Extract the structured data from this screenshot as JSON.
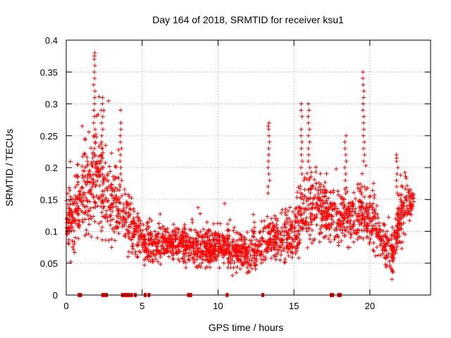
{
  "chart_data": {
    "type": "scatter",
    "title": "Day 164 of 2018, SRMTID for receiver ksu1",
    "xlabel": "GPS time / hours",
    "ylabel": "SRMTID / TECUs",
    "xlim": [
      0,
      24
    ],
    "ylim": [
      0,
      0.4
    ],
    "grid": true,
    "series_color": "#ff0000",
    "x_ticks": [
      0,
      5,
      10,
      15,
      20
    ],
    "x_tick_labels": [
      "0",
      "5",
      "10",
      "15",
      "20"
    ],
    "y_ticks": [
      0,
      0.05,
      0.1,
      0.15,
      0.2,
      0.25,
      0.3,
      0.35,
      0.4
    ],
    "y_tick_labels": [
      "0",
      "0.05",
      "0.1",
      "0.15",
      "0.2",
      "0.25",
      "0.3",
      "0.35",
      "0.4"
    ],
    "profile": {
      "x": [
        0,
        0.5,
        1.0,
        1.5,
        2.0,
        2.5,
        3.0,
        3.5,
        4.0,
        4.5,
        5.0,
        6,
        7,
        8,
        9,
        10,
        11,
        12,
        12.5,
        13,
        13.5,
        14,
        15,
        15.5,
        16,
        16.5,
        17,
        18,
        19,
        19.5,
        20,
        20.5,
        21,
        21.5,
        22,
        22.5,
        22.9
      ],
      "center": [
        0.11,
        0.13,
        0.15,
        0.17,
        0.18,
        0.16,
        0.14,
        0.13,
        0.12,
        0.1,
        0.085,
        0.08,
        0.08,
        0.075,
        0.075,
        0.075,
        0.07,
        0.065,
        0.07,
        0.08,
        0.09,
        0.085,
        0.1,
        0.12,
        0.14,
        0.14,
        0.13,
        0.12,
        0.12,
        0.13,
        0.12,
        0.1,
        0.075,
        0.07,
        0.12,
        0.14,
        0.15
      ],
      "spread": [
        0.03,
        0.05,
        0.06,
        0.07,
        0.08,
        0.07,
        0.06,
        0.05,
        0.04,
        0.03,
        0.03,
        0.025,
        0.025,
        0.025,
        0.025,
        0.025,
        0.025,
        0.025,
        0.025,
        0.03,
        0.035,
        0.03,
        0.035,
        0.05,
        0.05,
        0.045,
        0.04,
        0.035,
        0.035,
        0.04,
        0.04,
        0.035,
        0.03,
        0.03,
        0.04,
        0.035,
        0.03
      ]
    },
    "spikes": [
      {
        "x": 1.85,
        "values": [
          0.38,
          0.375,
          0.37,
          0.36,
          0.35,
          0.34,
          0.33,
          0.32,
          0.31,
          0.3,
          0.29,
          0.28,
          0.27,
          0.26,
          0.25,
          0.24,
          0.23,
          0.22
        ]
      },
      {
        "x": 2.35,
        "values": [
          0.31,
          0.3,
          0.29,
          0.28,
          0.27,
          0.26,
          0.25,
          0.24,
          0.23,
          0.22,
          0.21,
          0.2
        ]
      },
      {
        "x": 3.6,
        "values": [
          0.29,
          0.27,
          0.26,
          0.25,
          0.24,
          0.23,
          0.22,
          0.21,
          0.2,
          0.19,
          0.18,
          0.17
        ]
      },
      {
        "x": 13.35,
        "values": [
          0.27,
          0.265,
          0.26,
          0.25,
          0.24,
          0.23,
          0.22,
          0.21,
          0.2,
          0.19,
          0.18,
          0.17,
          0.16
        ]
      },
      {
        "x": 15.5,
        "values": [
          0.3,
          0.29,
          0.28,
          0.26,
          0.25,
          0.24,
          0.23,
          0.22,
          0.21,
          0.2,
          0.19
        ]
      },
      {
        "x": 16.0,
        "values": [
          0.3,
          0.29,
          0.28,
          0.27,
          0.26,
          0.25,
          0.24,
          0.23,
          0.22,
          0.21,
          0.2
        ]
      },
      {
        "x": 18.4,
        "values": [
          0.25,
          0.24,
          0.23,
          0.22,
          0.21,
          0.2,
          0.19,
          0.18
        ]
      },
      {
        "x": 19.6,
        "values": [
          0.35,
          0.34,
          0.33,
          0.32,
          0.31,
          0.3,
          0.29,
          0.28,
          0.27,
          0.26,
          0.25,
          0.24,
          0.23,
          0.22,
          0.21
        ]
      },
      {
        "x": 21.8,
        "values": [
          0.22,
          0.215,
          0.21,
          0.2,
          0.19,
          0.18,
          0.17,
          0.16
        ]
      }
    ],
    "zero_marks": [
      0.85,
      0.95,
      2.4,
      2.55,
      2.65,
      3.7,
      3.85,
      4.0,
      4.1,
      4.3,
      4.55,
      5.2,
      5.45,
      8.05,
      8.2,
      10.6,
      12.95,
      17.45,
      17.55,
      17.95,
      18.05
    ]
  }
}
